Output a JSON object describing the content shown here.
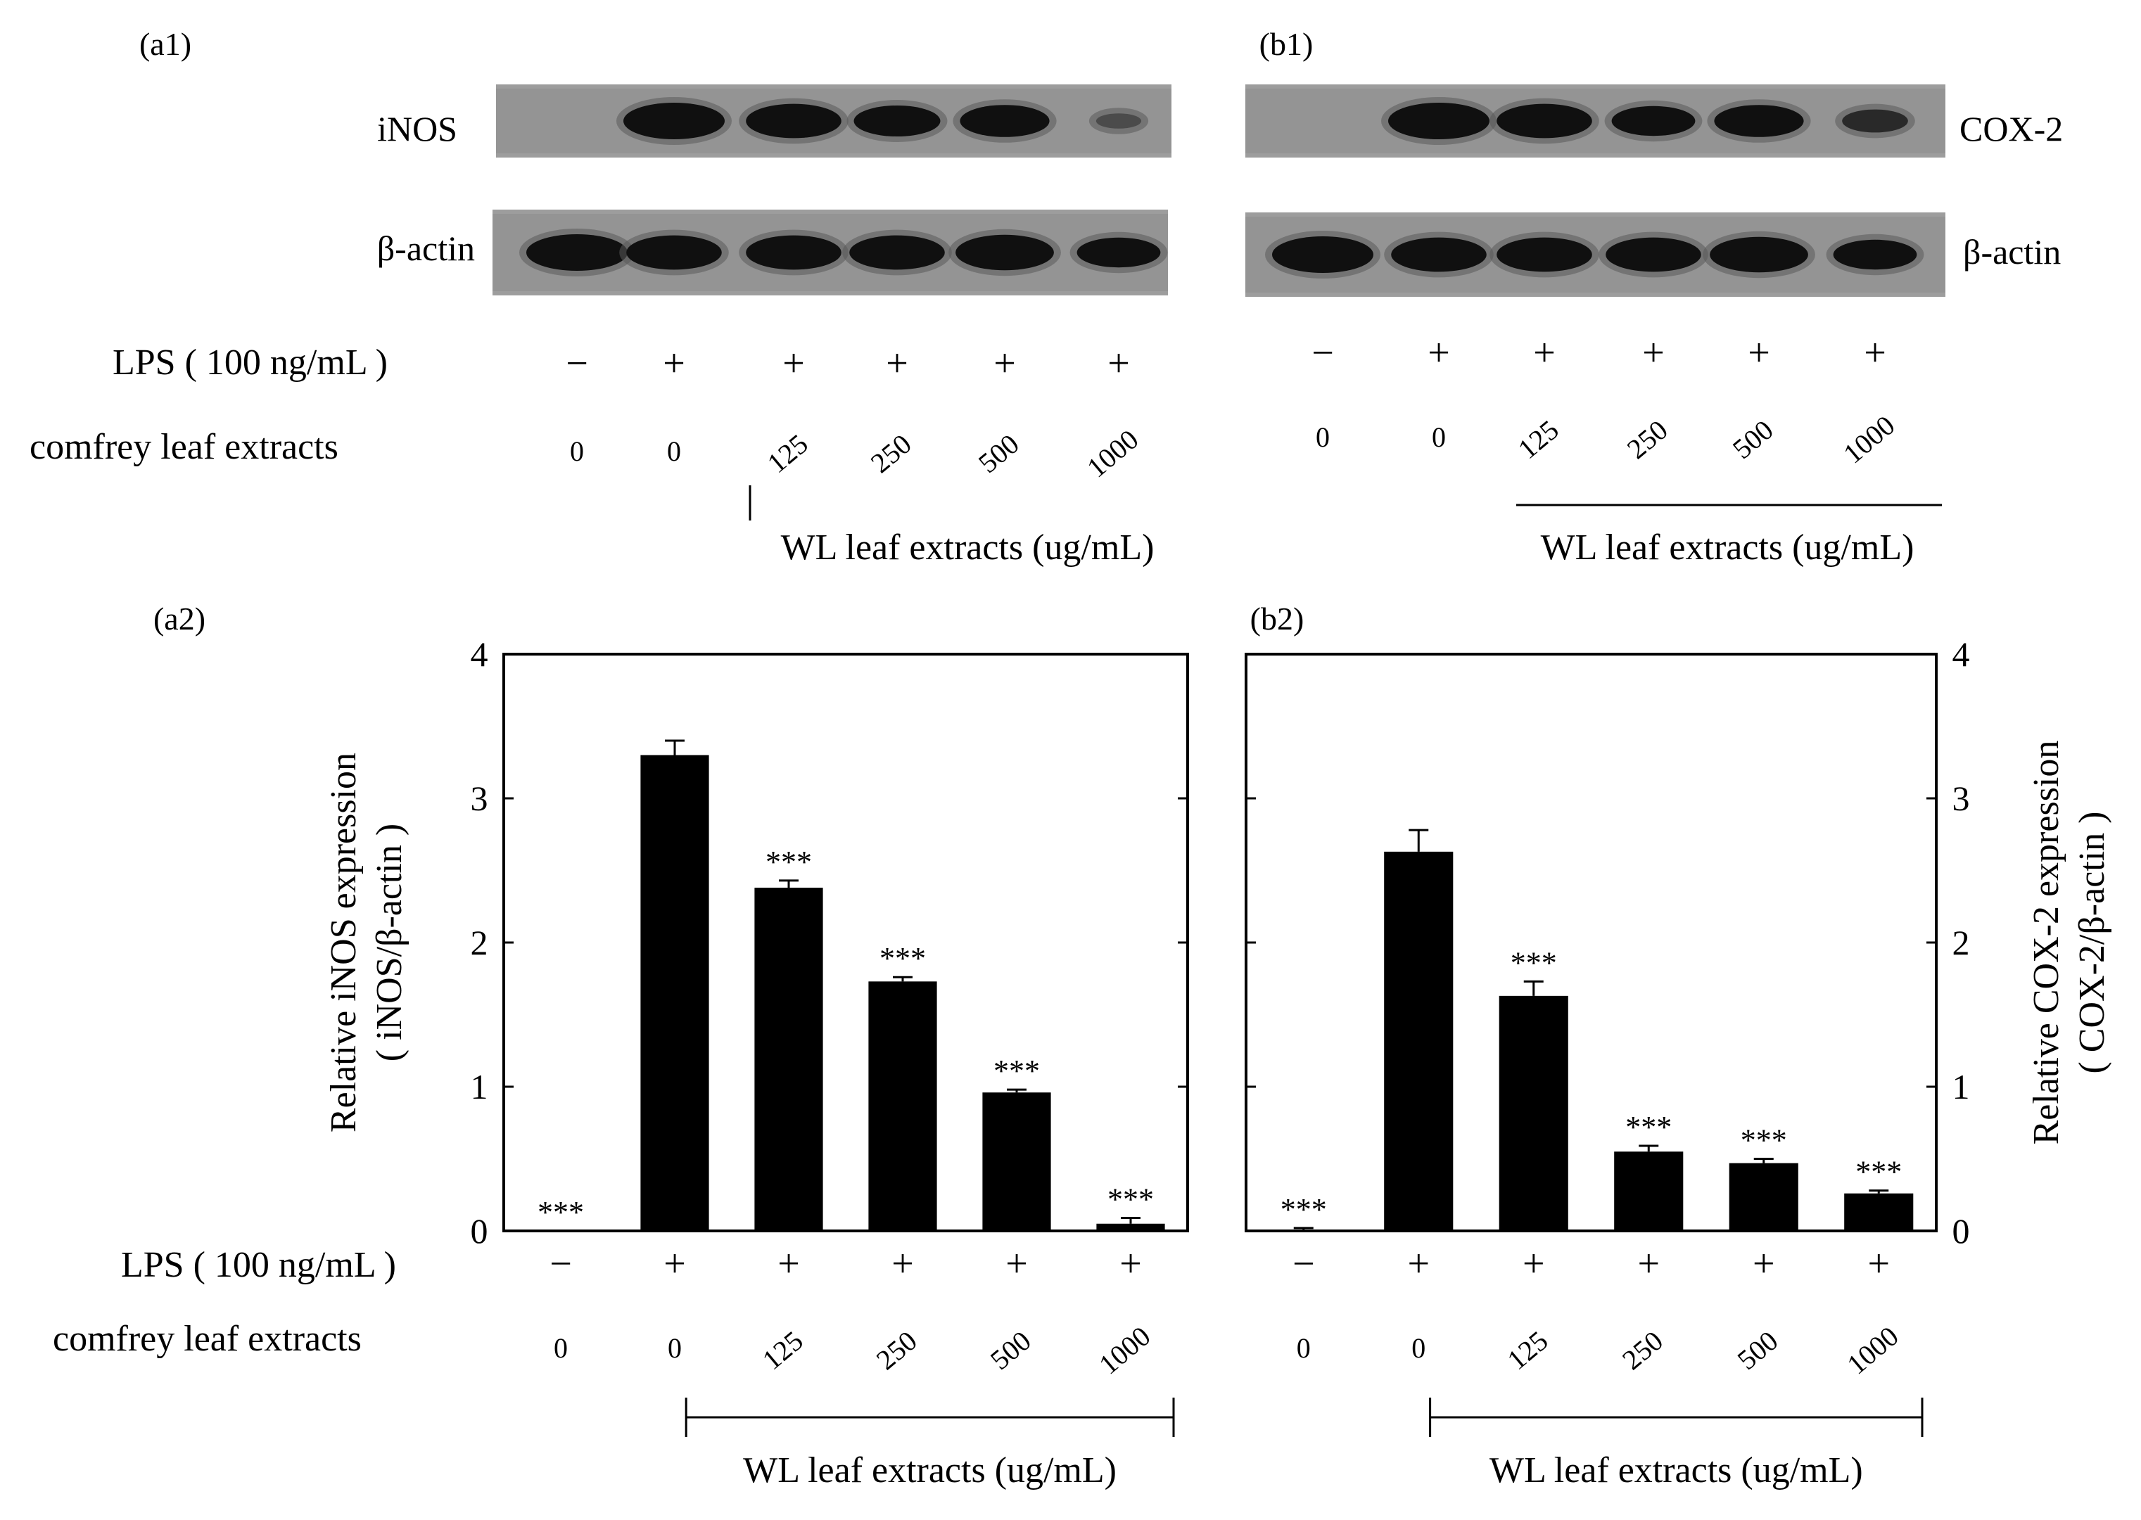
{
  "panels": {
    "a1": {
      "label": "(a1)",
      "protein": "iNOS",
      "loading": "β-actin",
      "lps_label": "LPS ( 100 ng/mL )",
      "lps": [
        "−",
        "+",
        "+",
        "+",
        "+",
        "+"
      ],
      "extract_label": "comfrey leaf extracts",
      "doses": [
        "0",
        "0",
        "125",
        "250",
        "500",
        "1000"
      ],
      "group_label": "WL leaf extracts (ug/mL)",
      "band_intensity": [
        0.0,
        1.0,
        0.9,
        0.75,
        0.8,
        0.05
      ]
    },
    "b1": {
      "label": "(b1)",
      "protein": "COX-2",
      "loading": "β-actin",
      "lps": [
        "−",
        "+",
        "+",
        "+",
        "+",
        "+"
      ],
      "doses": [
        "0",
        "0",
        "125",
        "250",
        "500",
        "1000"
      ],
      "group_label": "WL leaf extracts (ug/mL)",
      "band_intensity": [
        0.0,
        1.0,
        0.9,
        0.7,
        0.8,
        0.4
      ]
    }
  },
  "chart_data": [
    {
      "id": "a2",
      "panel_label": "(a2)",
      "type": "bar",
      "ylabel": "Relative iNOS expression",
      "ylabel2": "( iNOS/β-actin )",
      "ylim": [
        0,
        4
      ],
      "yticks": [
        "0",
        "1",
        "2",
        "3",
        "4"
      ],
      "lps_label": "LPS ( 100 ng/mL )",
      "lps": [
        "−",
        "+",
        "+",
        "+",
        "+",
        "+"
      ],
      "extract_label": "comfrey leaf extracts",
      "categories": [
        "0",
        "0",
        "125",
        "250",
        "500",
        "1000"
      ],
      "values": [
        0.0,
        3.3,
        2.38,
        1.73,
        0.96,
        0.05
      ],
      "errors": [
        0.0,
        0.1,
        0.05,
        0.03,
        0.02,
        0.04
      ],
      "annotations": [
        "***",
        "",
        "***",
        "***",
        "***",
        "***"
      ],
      "group_label": "WL leaf extracts (ug/mL)"
    },
    {
      "id": "b2",
      "panel_label": "(b2)",
      "type": "bar",
      "ylabel": "Relative COX-2 expression",
      "ylabel2": "( COX-2/β-actin )",
      "ylim": [
        0,
        4
      ],
      "yticks": [
        "0",
        "1",
        "2",
        "3",
        "4"
      ],
      "lps": [
        "−",
        "+",
        "+",
        "+",
        "+",
        "+"
      ],
      "categories": [
        "0",
        "0",
        "125",
        "250",
        "500",
        "1000"
      ],
      "values": [
        0.0,
        2.63,
        1.63,
        0.55,
        0.47,
        0.26
      ],
      "errors": [
        0.02,
        0.15,
        0.1,
        0.04,
        0.03,
        0.02
      ],
      "annotations": [
        "***",
        "",
        "***",
        "***",
        "***",
        "***"
      ],
      "group_label": "WL leaf extracts (ug/mL)"
    }
  ]
}
